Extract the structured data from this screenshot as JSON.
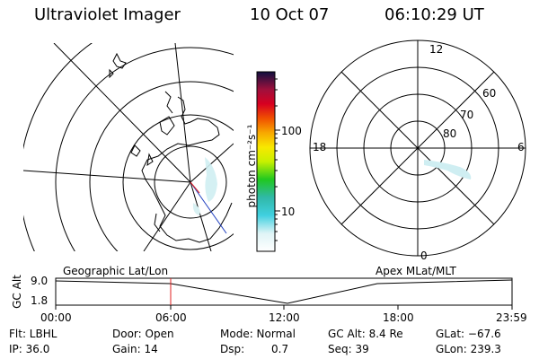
{
  "header": {
    "title": "Ultraviolet Imager",
    "date": "10 Oct 07",
    "time": "06:10:29 UT"
  },
  "colorbar": {
    "unit_label": "photon cm⁻²s⁻¹",
    "ticks": [
      "100",
      "10"
    ]
  },
  "polar_plot": {
    "clock_labels": {
      "top": "12",
      "bottom": "0",
      "left": "18",
      "right": "6"
    },
    "lat_labels": [
      "60",
      "70",
      "80"
    ]
  },
  "timeline": {
    "left_title": "Geographic Lat/Lon",
    "right_title": "Apex MLat/MLT",
    "y_axis_label": "GC Alt",
    "y_ticks": [
      "9.0",
      "1.8"
    ],
    "x_ticks": [
      "00:00",
      "06:00",
      "12:00",
      "18:00",
      "23:59"
    ],
    "current_time_marker": "06:00"
  },
  "footer": {
    "filter": "Flt: LBHL",
    "door": "Door: Open",
    "mode": "Mode: Normal",
    "gc_alt": "GC Alt: 8.4 Re",
    "glat": "GLat: −67.6",
    "ip": "IP: 36.0",
    "gain": "Gain: 14",
    "dsp_label": "Dsp:",
    "dsp_value": "0.7",
    "seq": "Seq: 39",
    "glon": "GLon: 239.3"
  }
}
